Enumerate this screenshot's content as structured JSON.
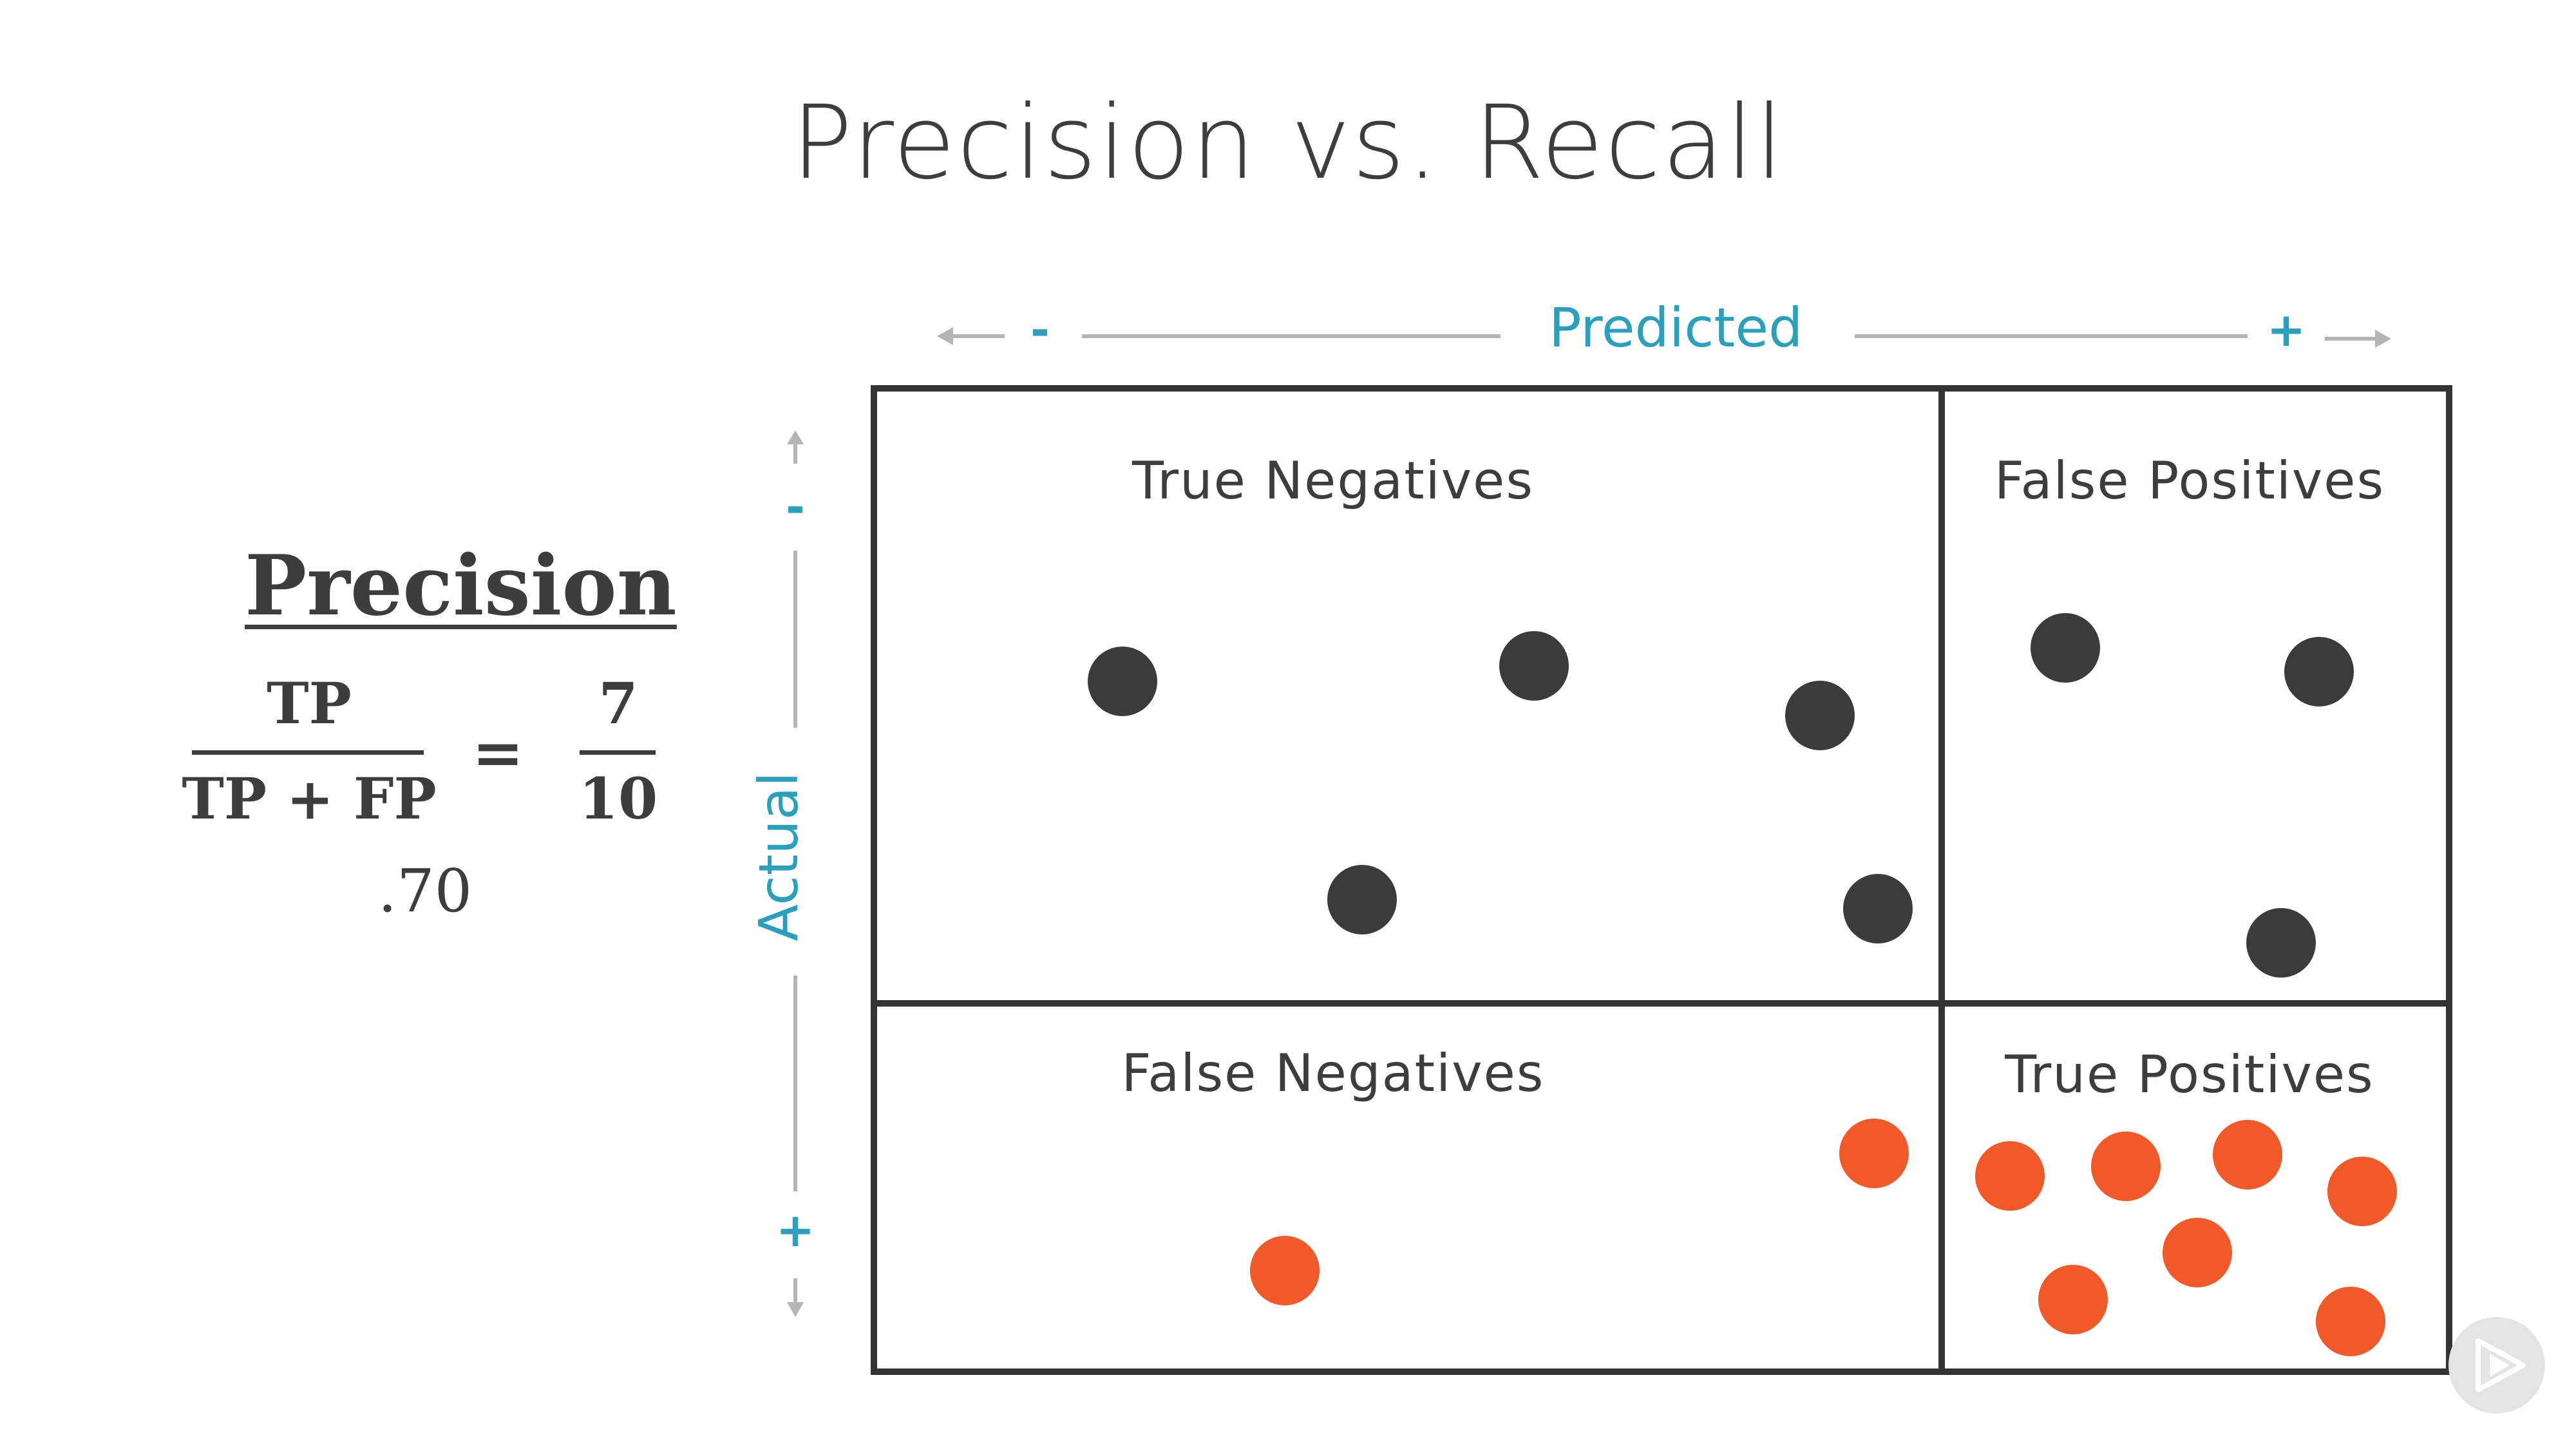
{
  "title": "Precision vs. Recall",
  "formula": {
    "heading": "Precision",
    "numerator": "TP",
    "denominator": "TP + FP",
    "equals": "=",
    "value_numerator": "7",
    "value_denominator": "10",
    "result": ".70"
  },
  "axes": {
    "predicted": {
      "label": "Predicted",
      "neg_sign": "-",
      "pos_sign": "+"
    },
    "actual": {
      "label": "Actual",
      "neg_sign": "-",
      "pos_sign": "+"
    }
  },
  "cells": {
    "top_left": "True Negatives",
    "top_right": "False Positives",
    "bottom_left": "False Negatives",
    "bottom_right": "True Positives"
  },
  "counts": {
    "true_negatives": 5,
    "false_positives": 3,
    "false_negatives": 2,
    "true_positives": 7
  },
  "colors": {
    "negative_dot": "#3b3b3b",
    "positive_dot": "#f05a28",
    "axis_accent": "#2aa0bd",
    "grid_line": "#333333",
    "arrow_gray": "#b5b5b5"
  },
  "icons": {
    "corner_logo": "play-logo-icon"
  }
}
